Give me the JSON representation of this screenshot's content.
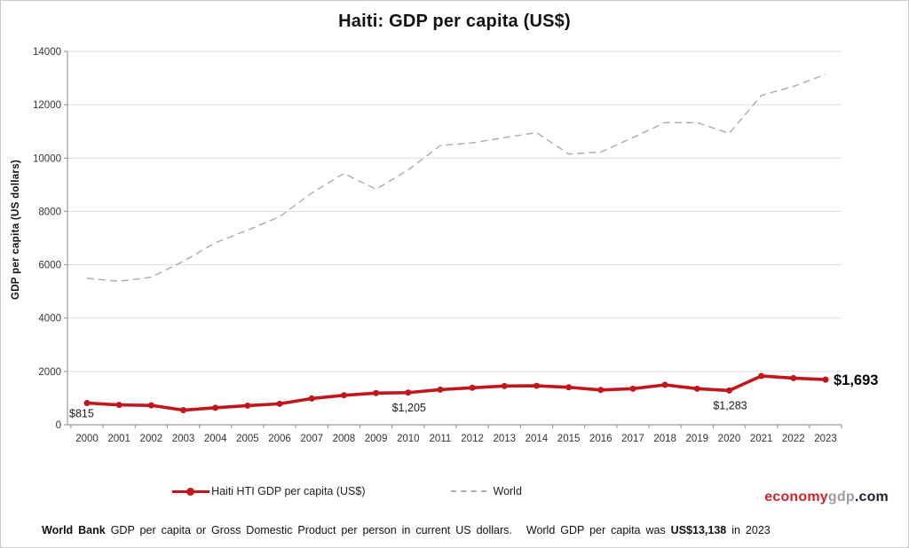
{
  "title": "Haiti: GDP per capita (US$)",
  "y_axis_title": "GDP per capita (US dollars)",
  "legend": {
    "haiti_label": "Haiti HTI GDP per capita (US$)",
    "world_label": "World"
  },
  "branding": {
    "part_economy": "economy",
    "part_gdp": "gdp",
    "part_com": ".com"
  },
  "footer": {
    "bold_source": "World Bank",
    "text_desc": " GDP per capita or Gross Domestic Product per person in current US dollars.",
    "text_world": "World GDP per capita was ",
    "bold_value": "US$13,138",
    "text_year": " in 2023"
  },
  "colors": {
    "haiti_line": "#C0161C",
    "world_line": "#ABABAB",
    "grid": "#DCDCDC",
    "axis": "#9B9B9B",
    "brand_red": "#D2232A",
    "brand_gray": "#9C9C9C",
    "brand_dark": "#222235"
  },
  "chart_data": {
    "type": "line",
    "title": "Haiti: GDP per capita (US$)",
    "xlabel": "",
    "ylabel": "GDP per capita (US dollars)",
    "ylim": [
      0,
      14000
    ],
    "yticks": [
      0,
      2000,
      4000,
      6000,
      8000,
      10000,
      12000,
      14000
    ],
    "grid": true,
    "legend_position": "bottom",
    "categories": [
      2000,
      2001,
      2002,
      2003,
      2004,
      2005,
      2006,
      2007,
      2008,
      2009,
      2010,
      2011,
      2012,
      2013,
      2014,
      2015,
      2016,
      2017,
      2018,
      2019,
      2020,
      2021,
      2022,
      2023
    ],
    "series": [
      {
        "name": "Haiti HTI GDP per capita (US$)",
        "color": "#C0161C",
        "style": "solid-markers",
        "values": [
          815,
          744,
          727,
          548,
          637,
          717,
          786,
          984,
          1105,
          1188,
          1205,
          1317,
          1387,
          1453,
          1461,
          1405,
          1304,
          1352,
          1497,
          1353,
          1283,
          1830,
          1748,
          1693
        ]
      },
      {
        "name": "World",
        "color": "#ABABAB",
        "style": "dashed",
        "values": [
          5494,
          5380,
          5533,
          6131,
          6826,
          7297,
          7804,
          8690,
          9424,
          8831,
          9554,
          10471,
          10571,
          10770,
          10955,
          10153,
          10224,
          10770,
          11330,
          11331,
          10926,
          12351,
          12688,
          13138
        ]
      }
    ],
    "annotations": [
      {
        "series": "Haiti HTI GDP per capita (US$)",
        "year": 2000,
        "text": "$815",
        "placement": "below-left",
        "emphasis": false
      },
      {
        "series": "Haiti HTI GDP per capita (US$)",
        "year": 2010,
        "text": "$1,205",
        "placement": "below",
        "emphasis": false
      },
      {
        "series": "Haiti HTI GDP per capita (US$)",
        "year": 2020,
        "text": "$1,283",
        "placement": "below",
        "emphasis": false
      },
      {
        "series": "Haiti HTI GDP per capita (US$)",
        "year": 2023,
        "text": "$1,693",
        "placement": "right",
        "emphasis": true
      }
    ]
  }
}
